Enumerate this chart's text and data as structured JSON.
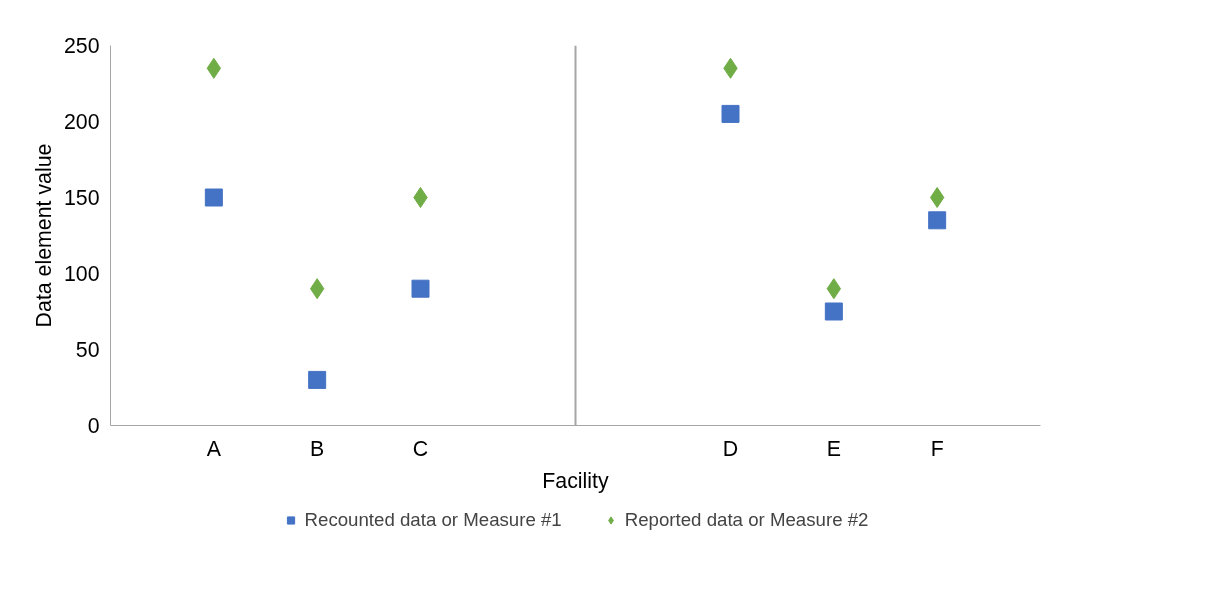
{
  "chart_data": {
    "type": "scatter",
    "xlabel": "Facility",
    "ylabel": "Data element value",
    "categories": [
      "A",
      "B",
      "C",
      null,
      null,
      "D",
      "E",
      "F"
    ],
    "ylim": [
      0,
      250
    ],
    "yticks": [
      0,
      50,
      100,
      150,
      200,
      250
    ],
    "series": [
      {
        "name": "Recounted data or Measure #1",
        "color": "#4472c4",
        "marker": "square",
        "values": [
          150,
          30,
          90,
          null,
          null,
          205,
          75,
          135
        ]
      },
      {
        "name": "Reported data or Measure #2",
        "color": "#70ad47",
        "marker": "diamond",
        "values": [
          235,
          90,
          150,
          null,
          null,
          235,
          90,
          150
        ]
      }
    ],
    "grid": false,
    "legend": "bottom"
  }
}
